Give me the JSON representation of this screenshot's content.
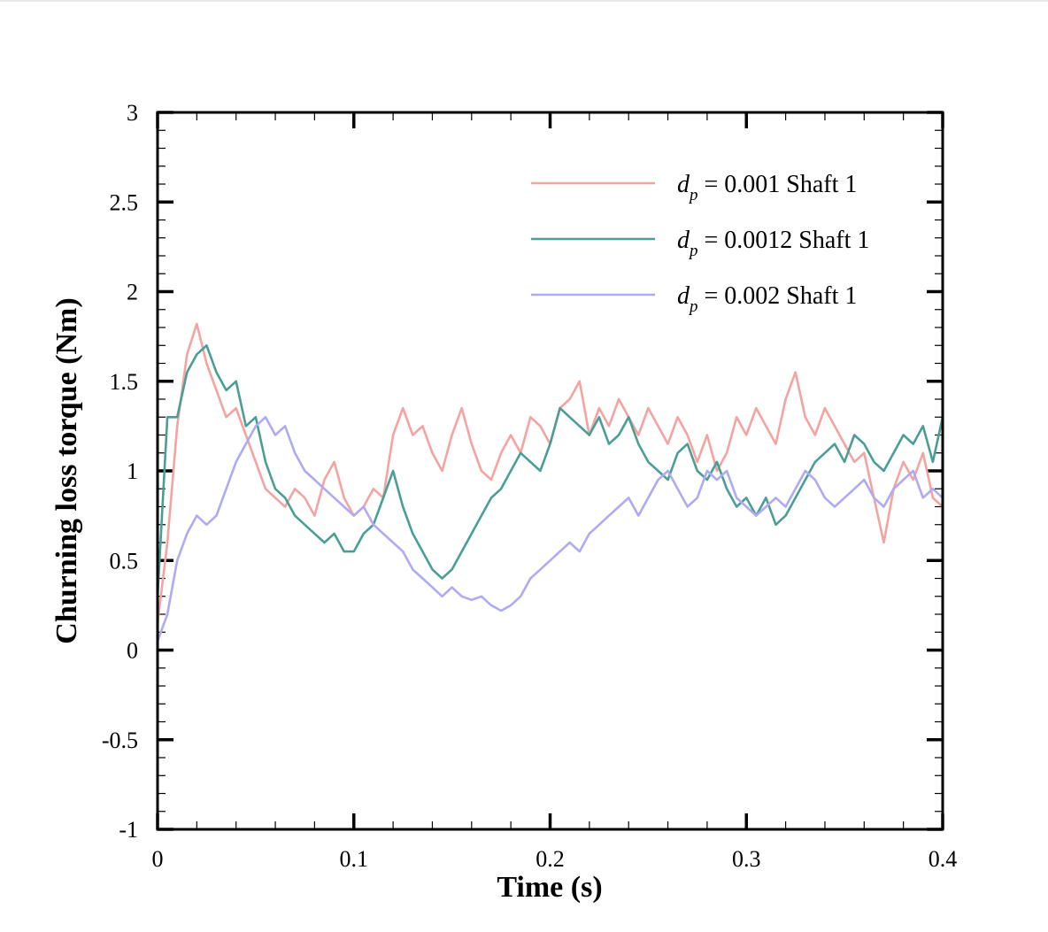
{
  "chart_data": {
    "type": "line",
    "title": "",
    "xlabel": "Time (s)",
    "ylabel": "Churning loss torque (Nm)",
    "xlim": [
      0,
      0.4
    ],
    "ylim": [
      -1,
      3
    ],
    "x_major_ticks": [
      0,
      0.1,
      0.2,
      0.3,
      0.4
    ],
    "x_tick_labels": [
      "0",
      "0.1",
      "0.2",
      "0.3",
      "0.4"
    ],
    "y_major_ticks": [
      -1,
      -0.5,
      0,
      0.5,
      1,
      1.5,
      2,
      2.5,
      3
    ],
    "y_tick_labels": [
      "-1",
      "-0.5",
      "0",
      "0.5",
      "1",
      "1.5",
      "2",
      "2.5",
      "3"
    ],
    "legend_position": "top-right",
    "series": [
      {
        "name": "d_p = 0.001   Shaft 1",
        "legend_symbol": "d",
        "legend_subscript": "p",
        "legend_rest": " = 0.001   Shaft 1",
        "color": "#F5A3A0",
        "x": [
          0,
          0.005,
          0.01,
          0.015,
          0.02,
          0.025,
          0.03,
          0.035,
          0.04,
          0.045,
          0.05,
          0.055,
          0.06,
          0.065,
          0.07,
          0.075,
          0.08,
          0.085,
          0.09,
          0.095,
          0.1,
          0.105,
          0.11,
          0.115,
          0.12,
          0.125,
          0.13,
          0.135,
          0.14,
          0.145,
          0.15,
          0.155,
          0.16,
          0.165,
          0.17,
          0.175,
          0.18,
          0.185,
          0.19,
          0.195,
          0.2,
          0.205,
          0.21,
          0.215,
          0.22,
          0.225,
          0.23,
          0.235,
          0.24,
          0.245,
          0.25,
          0.255,
          0.26,
          0.265,
          0.27,
          0.275,
          0.28,
          0.285,
          0.29,
          0.295,
          0.3,
          0.305,
          0.31,
          0.315,
          0.32,
          0.325,
          0.33,
          0.335,
          0.34,
          0.345,
          0.35,
          0.355,
          0.36,
          0.365,
          0.37,
          0.375,
          0.38,
          0.385,
          0.39,
          0.395,
          0.4
        ],
        "y": [
          0.15,
          0.6,
          1.25,
          1.65,
          1.82,
          1.6,
          1.45,
          1.3,
          1.35,
          1.2,
          1.05,
          0.9,
          0.85,
          0.8,
          0.9,
          0.85,
          0.75,
          0.95,
          1.05,
          0.85,
          0.75,
          0.8,
          0.9,
          0.85,
          1.2,
          1.35,
          1.2,
          1.25,
          1.1,
          1.0,
          1.2,
          1.35,
          1.15,
          1.0,
          0.95,
          1.1,
          1.2,
          1.1,
          1.3,
          1.25,
          1.15,
          1.35,
          1.4,
          1.5,
          1.2,
          1.35,
          1.25,
          1.4,
          1.3,
          1.2,
          1.35,
          1.25,
          1.15,
          1.3,
          1.2,
          1.05,
          1.2,
          1.0,
          1.1,
          1.3,
          1.2,
          1.35,
          1.25,
          1.15,
          1.4,
          1.55,
          1.3,
          1.2,
          1.35,
          1.25,
          1.15,
          1.05,
          1.1,
          0.85,
          0.6,
          0.9,
          1.05,
          0.95,
          1.1,
          0.85,
          0.8
        ]
      },
      {
        "name": "d_p = 0.0012 Shaft 1",
        "legend_symbol": "d",
        "legend_subscript": "p",
        "legend_rest": " = 0.0012 Shaft 1",
        "color": "#4A9E96",
        "x": [
          0,
          0.005,
          0.01,
          0.015,
          0.02,
          0.025,
          0.03,
          0.035,
          0.04,
          0.045,
          0.05,
          0.055,
          0.06,
          0.065,
          0.07,
          0.075,
          0.08,
          0.085,
          0.09,
          0.095,
          0.1,
          0.105,
          0.11,
          0.115,
          0.12,
          0.125,
          0.13,
          0.135,
          0.14,
          0.145,
          0.15,
          0.155,
          0.16,
          0.165,
          0.17,
          0.175,
          0.18,
          0.185,
          0.19,
          0.195,
          0.2,
          0.205,
          0.21,
          0.215,
          0.22,
          0.225,
          0.23,
          0.235,
          0.24,
          0.245,
          0.25,
          0.255,
          0.26,
          0.265,
          0.27,
          0.275,
          0.28,
          0.285,
          0.29,
          0.295,
          0.3,
          0.305,
          0.31,
          0.315,
          0.32,
          0.325,
          0.33,
          0.335,
          0.34,
          0.345,
          0.35,
          0.355,
          0.36,
          0.365,
          0.37,
          0.375,
          0.38,
          0.385,
          0.39,
          0.395,
          0.4
        ],
        "y": [
          0.3,
          1.3,
          1.3,
          1.55,
          1.65,
          1.7,
          1.55,
          1.45,
          1.5,
          1.25,
          1.3,
          1.05,
          0.9,
          0.85,
          0.75,
          0.7,
          0.65,
          0.6,
          0.65,
          0.55,
          0.55,
          0.65,
          0.7,
          0.85,
          1.0,
          0.8,
          0.65,
          0.55,
          0.45,
          0.4,
          0.45,
          0.55,
          0.65,
          0.75,
          0.85,
          0.9,
          1.0,
          1.1,
          1.05,
          1.0,
          1.15,
          1.35,
          1.3,
          1.25,
          1.2,
          1.3,
          1.15,
          1.2,
          1.3,
          1.15,
          1.05,
          1.0,
          0.95,
          1.1,
          1.15,
          1.0,
          0.95,
          1.05,
          0.9,
          0.8,
          0.85,
          0.75,
          0.85,
          0.7,
          0.75,
          0.85,
          0.95,
          1.05,
          1.1,
          1.15,
          1.05,
          1.2,
          1.15,
          1.05,
          1.0,
          1.1,
          1.2,
          1.15,
          1.25,
          1.05,
          1.3
        ]
      },
      {
        "name": "d_p = 0.002   Shaft 1",
        "legend_symbol": "d",
        "legend_subscript": "p",
        "legend_rest": " = 0.002   Shaft 1",
        "color": "#AEAAF4",
        "x": [
          0,
          0.005,
          0.01,
          0.015,
          0.02,
          0.025,
          0.03,
          0.035,
          0.04,
          0.045,
          0.05,
          0.055,
          0.06,
          0.065,
          0.07,
          0.075,
          0.08,
          0.085,
          0.09,
          0.095,
          0.1,
          0.105,
          0.11,
          0.115,
          0.12,
          0.125,
          0.13,
          0.135,
          0.14,
          0.145,
          0.15,
          0.155,
          0.16,
          0.165,
          0.17,
          0.175,
          0.18,
          0.185,
          0.19,
          0.195,
          0.2,
          0.205,
          0.21,
          0.215,
          0.22,
          0.225,
          0.23,
          0.235,
          0.24,
          0.245,
          0.25,
          0.255,
          0.26,
          0.265,
          0.27,
          0.275,
          0.28,
          0.285,
          0.29,
          0.295,
          0.3,
          0.305,
          0.31,
          0.315,
          0.32,
          0.325,
          0.33,
          0.335,
          0.34,
          0.345,
          0.35,
          0.355,
          0.36,
          0.365,
          0.37,
          0.375,
          0.38,
          0.385,
          0.39,
          0.395,
          0.4
        ],
        "y": [
          0.05,
          0.2,
          0.5,
          0.65,
          0.75,
          0.7,
          0.75,
          0.9,
          1.05,
          1.15,
          1.25,
          1.3,
          1.2,
          1.25,
          1.1,
          1.0,
          0.95,
          0.9,
          0.85,
          0.8,
          0.75,
          0.8,
          0.7,
          0.65,
          0.6,
          0.55,
          0.45,
          0.4,
          0.35,
          0.3,
          0.35,
          0.3,
          0.28,
          0.3,
          0.25,
          0.22,
          0.25,
          0.3,
          0.4,
          0.45,
          0.5,
          0.55,
          0.6,
          0.55,
          0.65,
          0.7,
          0.75,
          0.8,
          0.85,
          0.75,
          0.85,
          0.95,
          1.0,
          0.9,
          0.8,
          0.85,
          1.0,
          0.95,
          1.0,
          0.85,
          0.8,
          0.75,
          0.8,
          0.85,
          0.8,
          0.9,
          1.0,
          0.95,
          0.85,
          0.8,
          0.85,
          0.9,
          0.95,
          0.85,
          0.8,
          0.9,
          0.95,
          1.0,
          0.85,
          0.9,
          0.85
        ]
      }
    ]
  }
}
